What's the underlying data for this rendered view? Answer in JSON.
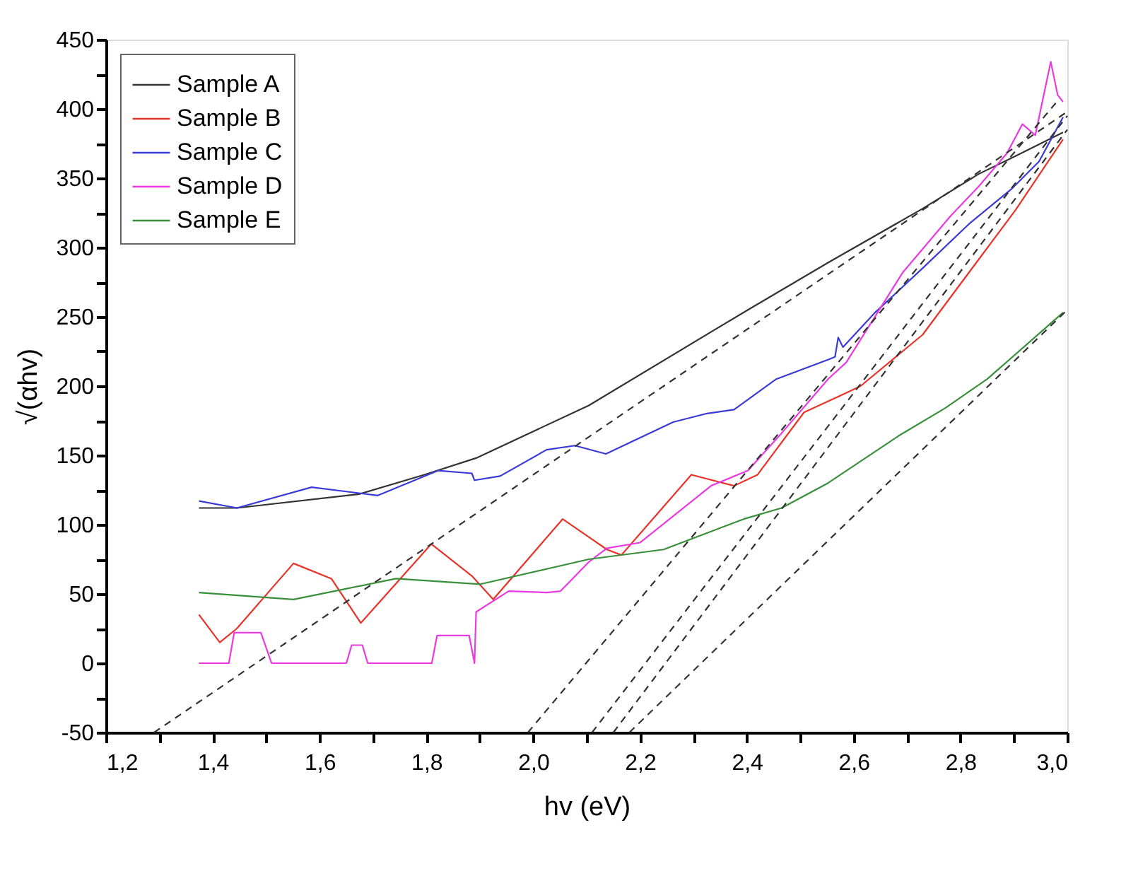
{
  "chart_data": {
    "type": "line",
    "xlabel": "hv (eV)",
    "ylabel": "√(αhv)",
    "xlim": [
      1.2,
      3.0
    ],
    "ylim": [
      -50,
      450
    ],
    "xticks": [
      {
        "value": 1.2,
        "label": "1,2"
      },
      {
        "value": 1.3,
        "label": null
      },
      {
        "value": 1.4,
        "label": "1,4"
      },
      {
        "value": 1.5,
        "label": null
      },
      {
        "value": 1.6,
        "label": "1,6"
      },
      {
        "value": 1.7,
        "label": null
      },
      {
        "value": 1.8,
        "label": "1,8"
      },
      {
        "value": 1.9,
        "label": null
      },
      {
        "value": 2.0,
        "label": "2,0"
      },
      {
        "value": 2.1,
        "label": null
      },
      {
        "value": 2.2,
        "label": "2,2"
      },
      {
        "value": 2.3,
        "label": null
      },
      {
        "value": 2.4,
        "label": "2,4"
      },
      {
        "value": 2.5,
        "label": null
      },
      {
        "value": 2.6,
        "label": "2,6"
      },
      {
        "value": 2.7,
        "label": null
      },
      {
        "value": 2.8,
        "label": "2,8"
      },
      {
        "value": 2.9,
        "label": null
      },
      {
        "value": 3.0,
        "label": "3,0"
      }
    ],
    "yticks": [
      -50,
      {
        "value": -25,
        "label": null
      },
      0,
      {
        "value": 25,
        "label": null
      },
      50,
      {
        "value": 75,
        "label": null
      },
      100,
      {
        "value": 125,
        "label": null
      },
      150,
      {
        "value": 175,
        "label": null
      },
      200,
      {
        "value": 225,
        "label": null
      },
      250,
      {
        "value": 275,
        "label": null
      },
      300,
      {
        "value": 325,
        "label": null
      },
      350,
      {
        "value": 375,
        "label": null
      },
      400,
      {
        "value": 425,
        "label": null
      },
      450
    ],
    "grid": false,
    "legend": "top left",
    "marker": "none",
    "line_style": "solid",
    "series": [
      {
        "name": "Sample A",
        "color": "#333333",
        "x": [
          1.374,
          1.445,
          1.674,
          1.796,
          1.893,
          2.104,
          2.402,
          2.552,
          2.729,
          2.834,
          2.903,
          2.992
        ],
        "values": [
          112,
          112,
          122,
          136,
          148,
          186,
          255,
          289,
          328,
          353,
          366,
          383
        ]
      },
      {
        "name": "Sample B",
        "color": "#e8332a",
        "x": [
          1.374,
          1.413,
          1.445,
          1.551,
          1.622,
          1.677,
          1.809,
          1.885,
          1.925,
          2.055,
          2.138,
          2.165,
          2.296,
          2.376,
          2.42,
          2.507,
          2.586,
          2.613,
          2.729,
          2.816,
          2.903,
          2.992
        ],
        "values": [
          35,
          15,
          25,
          72,
          61,
          29,
          86,
          63,
          46,
          104,
          82,
          78,
          136,
          128,
          136,
          181,
          195,
          200,
          237,
          282,
          327,
          378
        ]
      },
      {
        "name": "Sample C",
        "color": "#3a3ad6",
        "x": [
          1.374,
          1.445,
          1.585,
          1.709,
          1.822,
          1.885,
          1.89,
          1.938,
          2.025,
          2.078,
          2.136,
          2.262,
          2.323,
          2.376,
          2.455,
          2.552,
          2.565,
          2.571,
          2.58,
          2.64,
          2.729,
          2.816,
          2.895,
          2.947,
          2.992
        ],
        "values": [
          117,
          112,
          127,
          121,
          139,
          137,
          132,
          135,
          154,
          157,
          151,
          174,
          180,
          183,
          205,
          219,
          221,
          235,
          228,
          253,
          285,
          317,
          342,
          362,
          394
        ]
      },
      {
        "name": "Sample D",
        "color": "#e83ae0",
        "x": [
          1.374,
          1.43,
          1.44,
          1.49,
          1.51,
          1.65,
          1.66,
          1.68,
          1.69,
          1.81,
          1.82,
          1.88,
          1.89,
          1.893,
          1.954,
          2.025,
          2.051,
          2.104,
          2.138,
          2.2,
          2.333,
          2.402,
          2.465,
          2.552,
          2.586,
          2.692,
          2.782,
          2.834,
          2.887,
          2.916,
          2.94,
          2.969,
          2.982,
          2.992
        ],
        "values": [
          0,
          0,
          22,
          22,
          0,
          0,
          13,
          13,
          0,
          0,
          20,
          20,
          0,
          37,
          52,
          51,
          52,
          73,
          83,
          87,
          128,
          139,
          166,
          205,
          217,
          282,
          323,
          344,
          368,
          389,
          381,
          434,
          410,
          405
        ]
      },
      {
        "name": "Sample E",
        "color": "#3a8f3a",
        "x": [
          1.374,
          1.551,
          1.743,
          1.901,
          2.104,
          2.244,
          2.394,
          2.465,
          2.552,
          2.684,
          2.771,
          2.85,
          2.992
        ],
        "values": [
          51,
          46,
          61,
          57,
          75,
          82,
          104,
          112,
          130,
          164,
          184,
          205,
          253
        ]
      },
      {
        "type": "line",
        "line_style": "dashed",
        "color": "#333333",
        "x": [
          1.29,
          3.0
        ],
        "values": [
          -50,
          398
        ]
      },
      {
        "type": "line",
        "line_style": "dashed",
        "color": "#333333",
        "x": [
          1.99,
          2.98
        ],
        "values": [
          -50,
          405
        ]
      },
      {
        "type": "line",
        "line_style": "dashed",
        "color": "#333333",
        "x": [
          2.11,
          3.0
        ],
        "values": [
          -50,
          395
        ]
      },
      {
        "type": "line",
        "line_style": "dashed",
        "color": "#333333",
        "x": [
          2.15,
          3.0
        ],
        "values": [
          -50,
          385
        ]
      },
      {
        "type": "line",
        "line_style": "dashed",
        "color": "#333333",
        "x": [
          2.18,
          3.0
        ],
        "values": [
          -50,
          255
        ]
      }
    ]
  }
}
